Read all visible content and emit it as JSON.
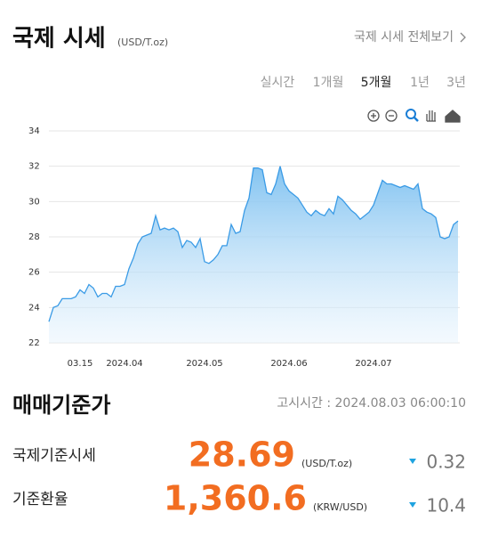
{
  "header": {
    "title": "국제 시세",
    "unit": "(USD/T.oz)",
    "link": "국제 시세 전체보기"
  },
  "tabs": {
    "items": [
      "실시간",
      "1개월",
      "5개월",
      "1년",
      "3년"
    ],
    "active": 2
  },
  "chart_data": {
    "type": "area",
    "color": "#3a9be6",
    "categories": [
      null,
      null,
      null,
      null,
      null,
      null,
      null,
      "03.15",
      null,
      null,
      null,
      null,
      null,
      null,
      null,
      null,
      null,
      "2024.04",
      null,
      null,
      null,
      null,
      null,
      null,
      null,
      null,
      null,
      null,
      null,
      null,
      null,
      null,
      null,
      null,
      null,
      "2024.05",
      null,
      null,
      null,
      null,
      null,
      null,
      null,
      null,
      null,
      null,
      null,
      null,
      null,
      null,
      null,
      null,
      null,
      null,
      "2024.06",
      null,
      null,
      null,
      null,
      null,
      null,
      null,
      null,
      null,
      null,
      null,
      null,
      null,
      null,
      null,
      null,
      null,
      null,
      "2024.07",
      null,
      null,
      null,
      null,
      null,
      null,
      null,
      null,
      null,
      null,
      null,
      null,
      null,
      null,
      null,
      null,
      null,
      null,
      null
    ],
    "values": [
      23.2,
      24.0,
      24.1,
      24.5,
      24.5,
      24.5,
      24.6,
      25.0,
      24.8,
      25.3,
      25.1,
      24.6,
      24.8,
      24.8,
      24.6,
      25.2,
      25.2,
      25.3,
      26.2,
      26.8,
      27.6,
      28.0,
      28.1,
      28.2,
      29.2,
      28.4,
      28.5,
      28.4,
      28.5,
      28.3,
      27.4,
      27.8,
      27.7,
      27.4,
      27.9,
      26.6,
      26.5,
      26.7,
      27.0,
      27.5,
      27.5,
      28.7,
      28.2,
      28.3,
      29.5,
      30.2,
      31.9,
      31.9,
      31.8,
      30.5,
      30.4,
      31.0,
      32.0,
      31.0,
      30.6,
      30.4,
      30.2,
      29.8,
      29.4,
      29.2,
      29.5,
      29.3,
      29.2,
      29.6,
      29.3,
      30.3,
      30.1,
      29.8,
      29.5,
      29.3,
      29.0,
      29.2,
      29.4,
      29.8,
      30.5,
      31.2,
      31.0,
      31.0,
      30.9,
      30.8,
      30.9,
      30.8,
      30.7,
      31.0,
      29.6,
      29.4,
      29.3,
      29.1,
      28.0,
      27.9,
      28.0,
      28.7,
      28.9
    ],
    "ylim": [
      22,
      34
    ],
    "yticks": [
      22,
      24,
      26,
      28,
      30,
      32,
      34
    ],
    "grid": true
  },
  "summary": {
    "title": "매매기준가",
    "time": "고시시간 : 2024.08.03 06:00:10",
    "rows": [
      {
        "label": "국제기준시세",
        "value": "28.69",
        "unit": "(USD/T.oz)",
        "change": "0.32"
      },
      {
        "label": "기준환율",
        "value": "1,360.6",
        "unit": "(KRW/USD)",
        "change": "10.4"
      }
    ]
  }
}
